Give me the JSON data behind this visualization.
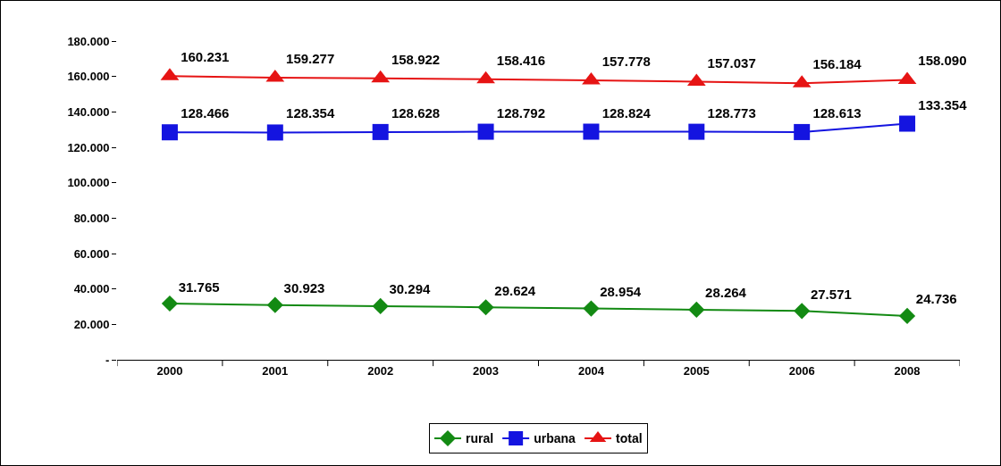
{
  "chart_data": {
    "type": "line",
    "categories": [
      "2000",
      "2001",
      "2002",
      "2003",
      "2004",
      "2005",
      "2006",
      "2008"
    ],
    "series": [
      {
        "name": "rural",
        "color": "#138a13",
        "marker": "diamond",
        "values": [
          31765,
          30923,
          30294,
          29624,
          28954,
          28264,
          27571,
          24736
        ],
        "value_labels": [
          "31.765",
          "30.923",
          "30.294",
          "29.624",
          "28.954",
          "28.264",
          "27.571",
          "24.736"
        ]
      },
      {
        "name": "urbana",
        "color": "#1414e0",
        "marker": "square",
        "values": [
          128466,
          128354,
          128628,
          128792,
          128824,
          128773,
          128613,
          133354
        ],
        "value_labels": [
          "128.466",
          "128.354",
          "128.628",
          "128.792",
          "128.824",
          "128.773",
          "128.613",
          "133.354"
        ]
      },
      {
        "name": "total",
        "color": "#e61414",
        "marker": "triangle",
        "values": [
          160231,
          159277,
          158922,
          158416,
          157778,
          157037,
          156184,
          158090
        ],
        "value_labels": [
          "160.231",
          "159.277",
          "158.922",
          "158.416",
          "157.778",
          "157.037",
          "156.184",
          "158.090"
        ]
      }
    ],
    "ylim": [
      0,
      180000
    ],
    "yticks": [
      {
        "value": 0,
        "label": "-"
      },
      {
        "value": 20000,
        "label": "20.000"
      },
      {
        "value": 40000,
        "label": "40.000"
      },
      {
        "value": 60000,
        "label": "60.000"
      },
      {
        "value": 80000,
        "label": "80.000"
      },
      {
        "value": 100000,
        "label": "100.000"
      },
      {
        "value": 120000,
        "label": "120.000"
      },
      {
        "value": 140000,
        "label": "140.000"
      },
      {
        "value": 160000,
        "label": "160.000"
      },
      {
        "value": 180000,
        "label": "180.000"
      }
    ],
    "grid": false,
    "legend": "bottom"
  }
}
